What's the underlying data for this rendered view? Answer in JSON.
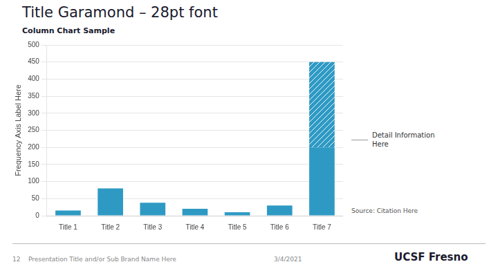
{
  "chart_data": {
    "type": "bar",
    "title": "Title Garamond – 28pt font",
    "subtitle": "Column Chart Sample",
    "categories": [
      "Title 1",
      "Title 2",
      "Title 3",
      "Title 4",
      "Title 5",
      "Title 6",
      "Title 7"
    ],
    "series": [
      {
        "color": "#2E9AC4",
        "values": [
          15,
          80,
          38,
          20,
          10,
          30,
          200
        ]
      },
      {
        "color": "#2E9AC4",
        "values": [
          0,
          0,
          0,
          0,
          0,
          0,
          250
        ]
      }
    ],
    "stacked": true,
    "ylabel": "Frequency Axis Label Here",
    "ylim": [
      0,
      500
    ],
    "yticks": [
      0,
      50,
      100,
      150,
      200,
      250,
      300,
      350,
      400,
      450,
      500
    ],
    "grid": true,
    "annotations": [
      "Detail Information\nHere",
      "Source: Citation Here",
      "12    Presentation Title and/or Sub Brand Name Here",
      "3/4/2021",
      "UCSF Fresno"
    ]
  }
}
